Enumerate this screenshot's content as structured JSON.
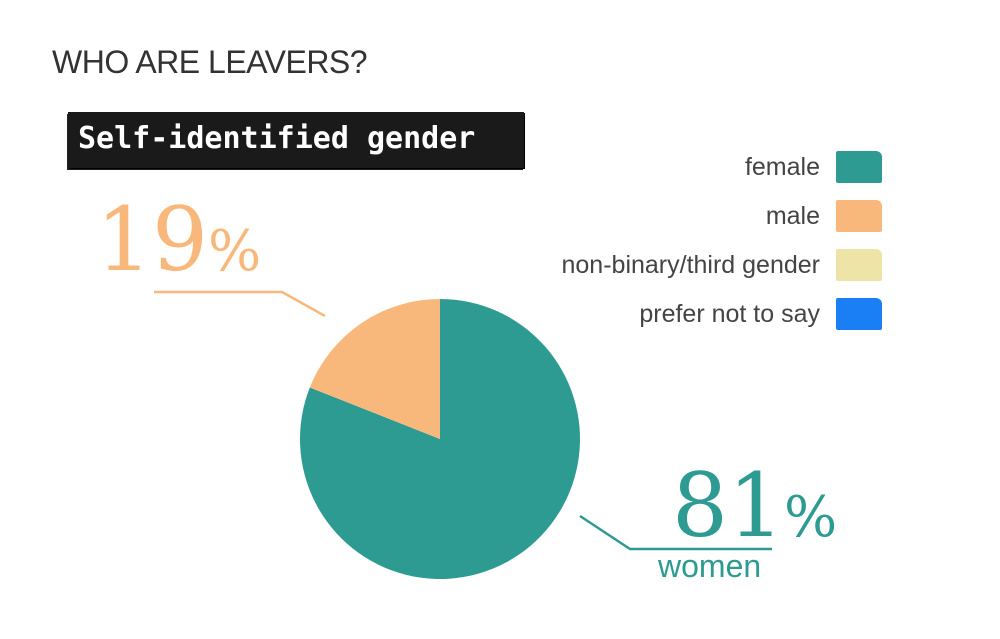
{
  "header": {
    "title": "WHO ARE LEAVERS?",
    "subtitle": "Self-identified gender"
  },
  "chart_data": {
    "type": "pie",
    "title": "Self-identified gender",
    "slices": [
      {
        "label": "female",
        "value": 81,
        "color": "#2e9b92"
      },
      {
        "label": "male",
        "value": 19,
        "color": "#f9b87b"
      },
      {
        "label": "non-binary/third gender",
        "value": 0,
        "color": "#efe4a8"
      },
      {
        "label": "prefer not to say",
        "value": 0,
        "color": "#1a7ff5"
      }
    ],
    "legend_position": "top-right",
    "annotations": {
      "female": {
        "value": "81",
        "unit": "%",
        "caption": "women"
      },
      "male": {
        "value": "19",
        "unit": "%"
      }
    }
  }
}
